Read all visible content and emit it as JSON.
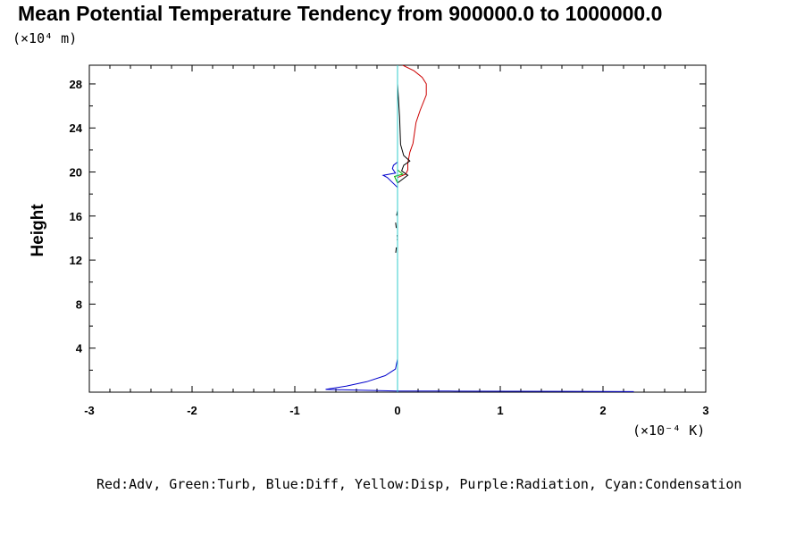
{
  "title": "Mean Potential Temperature Tendency from 900000.0 to 1000000.0",
  "y_unit": "(×10⁴ m)",
  "x_unit": "(×10⁻⁴ K)",
  "legend_text": "Red:Adv, Green:Turb, Blue:Diff, Yellow:Disp, Purple:Radiation, Cyan:Condensation",
  "colors": {
    "red": "#cc0000",
    "green": "#00aa00",
    "blue": "#0000cc",
    "cyan": "#33cccc",
    "black": "#000000",
    "axes": "#000000"
  },
  "chart_data": {
    "type": "line",
    "title": "Mean Potential Temperature Tendency from 900000.0 to 1000000.0",
    "xlabel": "",
    "ylabel": "Height",
    "xlim": [
      -3,
      3
    ],
    "ylim": [
      0,
      29.7
    ],
    "x_ticks": [
      -3,
      -2,
      -1,
      0,
      1,
      2,
      3
    ],
    "y_ticks": [
      4,
      8,
      12,
      16,
      20,
      24,
      28
    ],
    "grid": false,
    "legend": "bottom",
    "series": [
      {
        "name": "Adv",
        "color": "#cc0000",
        "dash": false,
        "points": [
          [
            0.0,
            0.2
          ],
          [
            0.0,
            12
          ],
          [
            0.0,
            19.5
          ],
          [
            0.08,
            19.8
          ],
          [
            0.1,
            20.2
          ],
          [
            0.1,
            20.8
          ],
          [
            0.12,
            21.8
          ],
          [
            0.15,
            22.6
          ],
          [
            0.18,
            24.5
          ],
          [
            0.22,
            25.6
          ],
          [
            0.28,
            27
          ],
          [
            0.28,
            28
          ],
          [
            0.24,
            28.6
          ],
          [
            0.16,
            29.2
          ],
          [
            0.05,
            29.7
          ]
        ]
      },
      {
        "name": "Turb",
        "color": "#00aa00",
        "dash": false,
        "points": [
          [
            0.0,
            0.2
          ],
          [
            0.0,
            19
          ],
          [
            -0.03,
            19.6
          ],
          [
            0.05,
            19.8
          ],
          [
            0.0,
            20.2
          ],
          [
            0.0,
            29.7
          ]
        ]
      },
      {
        "name": "Diff",
        "color": "#0000cc",
        "dash": false,
        "points": [
          [
            2.3,
            0.05
          ],
          [
            0.5,
            0.1
          ],
          [
            0.0,
            0.1
          ],
          [
            -0.7,
            0.25
          ],
          [
            -0.5,
            0.55
          ],
          [
            -0.3,
            0.95
          ],
          [
            -0.12,
            1.5
          ],
          [
            -0.02,
            2.1
          ],
          [
            0.0,
            3
          ],
          [
            0.0,
            18.6
          ],
          [
            -0.1,
            19.5
          ],
          [
            -0.14,
            19.7
          ],
          [
            -0.02,
            19.9
          ],
          [
            -0.05,
            20.3
          ],
          [
            -0.04,
            20.6
          ],
          [
            0.0,
            20.9
          ],
          [
            0.0,
            29.7
          ]
        ]
      },
      {
        "name": "",
        "color": "#000000",
        "dash": false,
        "points": [
          [
            0.0,
            19.0
          ],
          [
            0.1,
            19.7
          ],
          [
            0.04,
            20.1
          ],
          [
            0.06,
            20.6
          ],
          [
            0.12,
            21.0
          ],
          [
            0.06,
            21.5
          ],
          [
            0.03,
            22.5
          ],
          [
            0.02,
            25
          ],
          [
            0.0,
            28
          ],
          [
            0.0,
            29.7
          ]
        ]
      },
      {
        "name": "",
        "color": "#000000",
        "dash": true,
        "points": [
          [
            0.0,
            0.2
          ],
          [
            0.0,
            10.5
          ],
          [
            0.0,
            12.0
          ],
          [
            -0.02,
            12.5
          ],
          [
            0.0,
            14
          ],
          [
            -0.02,
            15.5
          ],
          [
            0.0,
            16.5
          ],
          [
            0.0,
            29.7
          ]
        ]
      },
      {
        "name": "Condensation",
        "color": "#33cccc",
        "dash": false,
        "points": [
          [
            0.0,
            0.0
          ],
          [
            0.0,
            29.7
          ]
        ]
      }
    ]
  }
}
